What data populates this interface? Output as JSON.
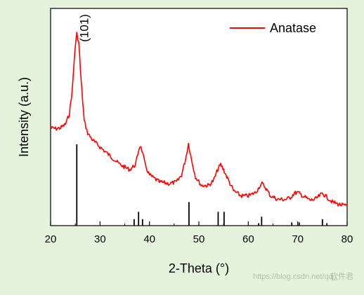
{
  "chart_data": {
    "type": "line",
    "xlabel": "2-Theta (°)",
    "ylabel": "Intensity (a.u.)",
    "xlim": [
      20,
      80
    ],
    "x_ticks": [
      "20",
      "30",
      "40",
      "50",
      "60",
      "70",
      "80"
    ],
    "y_ticks_shown": false,
    "grid": false,
    "legend_placement": "top-right",
    "series": [
      {
        "name": "Anatase",
        "color": "#ff0000",
        "x": [
          20,
          21,
          22,
          23,
          23.8,
          24.4,
          24.9,
          25.3,
          25.7,
          26.2,
          26.8,
          27.5,
          28.5,
          30,
          32,
          34,
          36,
          37.2,
          37.8,
          38.1,
          38.5,
          39.2,
          40,
          42,
          44,
          45.5,
          46.5,
          47.3,
          47.9,
          48.5,
          49.3,
          50.5,
          52,
          53,
          53.8,
          54.4,
          55,
          55.8,
          57,
          58.5,
          60,
          61.5,
          62.4,
          62.8,
          63.4,
          64.5,
          66,
          67.5,
          68.5,
          69.3,
          70,
          71,
          72.5,
          73.5,
          74.4,
          75,
          75.8,
          77,
          78.5,
          80
        ],
        "y": [
          0.46,
          0.455,
          0.46,
          0.48,
          0.54,
          0.68,
          0.9,
          1.0,
          0.95,
          0.72,
          0.5,
          0.43,
          0.39,
          0.35,
          0.3,
          0.25,
          0.22,
          0.25,
          0.33,
          0.36,
          0.33,
          0.24,
          0.19,
          0.15,
          0.14,
          0.15,
          0.19,
          0.28,
          0.37,
          0.28,
          0.18,
          0.13,
          0.13,
          0.16,
          0.22,
          0.25,
          0.22,
          0.17,
          0.1,
          0.07,
          0.07,
          0.09,
          0.13,
          0.14,
          0.12,
          0.07,
          0.05,
          0.05,
          0.06,
          0.085,
          0.09,
          0.07,
          0.045,
          0.05,
          0.07,
          0.085,
          0.065,
          0.035,
          0.02,
          0.01
        ]
      }
    ],
    "reference_lines": {
      "x": [
        25.3,
        36.9,
        37.8,
        38.6,
        48.0,
        53.9,
        55.1,
        62.1,
        62.7,
        68.8,
        70.3,
        75.0,
        75.9
      ],
      "height": [
        1.0,
        0.08,
        0.17,
        0.08,
        0.29,
        0.17,
        0.17,
        0.03,
        0.11,
        0.04,
        0.04,
        0.08,
        0.03
      ]
    },
    "annotations": [
      {
        "text": "(101)",
        "x": 27.0,
        "y": 1.0,
        "orientation": "vertical"
      }
    ]
  },
  "watermark": {
    "text": "https://blog.csdn.net/qq_",
    "brand": "软件君"
  }
}
